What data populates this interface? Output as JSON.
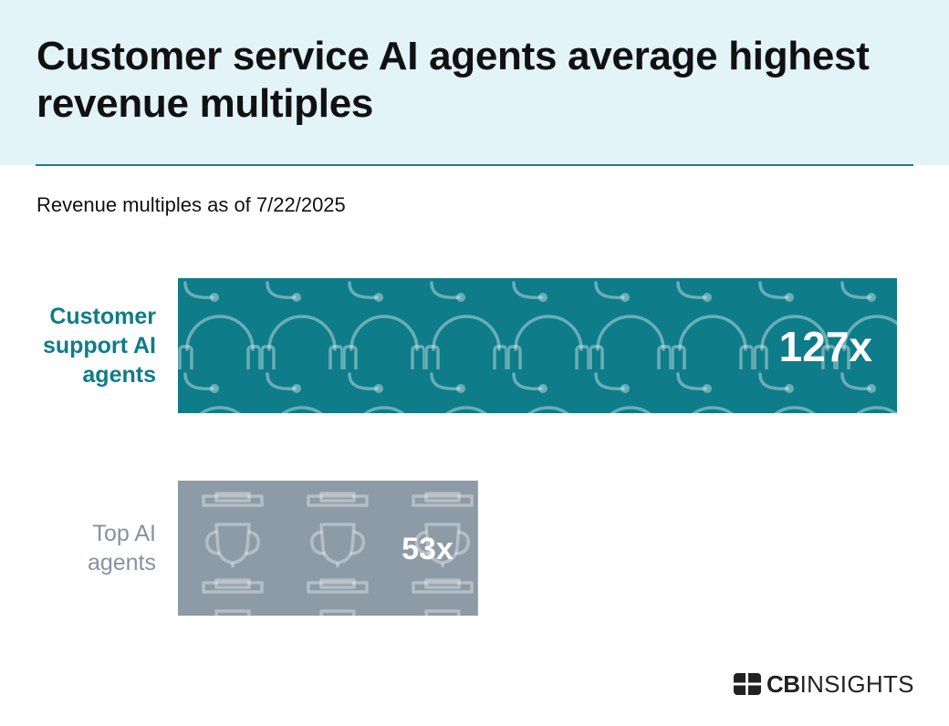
{
  "header": {
    "title": "Customer service AI agents average highest revenue multiples",
    "subtitle": "Revenue multiples as of 7/22/2025"
  },
  "colors": {
    "header_bg": "#e3f4f9",
    "accent": "#0e7c89",
    "gray": "#8d9ba6",
    "gray_text": "#8593a0"
  },
  "chart_data": {
    "type": "bar",
    "orientation": "horizontal",
    "title": "Customer service AI agents average highest revenue multiples",
    "subtitle": "Revenue multiples as of 7/22/2025",
    "categories": [
      "Customer support AI agents",
      "Top AI agents"
    ],
    "category_label_lines": [
      [
        "Customer",
        "support AI",
        "agents"
      ],
      [
        "Top AI",
        "agents"
      ]
    ],
    "values": [
      127,
      53
    ],
    "value_labels": [
      "127x",
      "53x"
    ],
    "unit": "x",
    "bar_colors": [
      "#0e7c89",
      "#8d9ba6"
    ],
    "label_colors": [
      "#0e7c89",
      "#8593a0"
    ],
    "bar_patterns": [
      "headset-icon",
      "trophy-icon"
    ],
    "xlim": [
      0,
      127
    ],
    "xlabel": "",
    "ylabel": "",
    "grid": false
  },
  "footer": {
    "logo_icon": "cb-logo-icon",
    "brand_bold": "CB",
    "brand_regular": "INSIGHTS"
  }
}
